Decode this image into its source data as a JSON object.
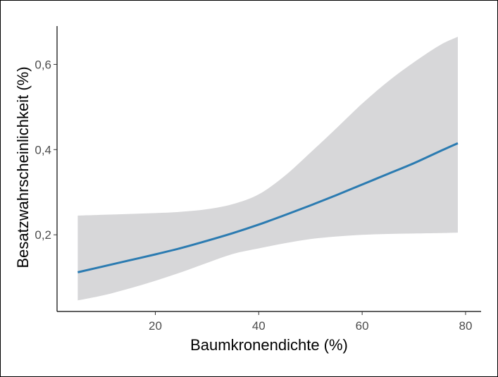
{
  "chart_data": {
    "type": "line",
    "title": "",
    "xlabel": "Baumkronendichte (%)",
    "ylabel": "Besatzwahrscheinlichkeit (%)",
    "xlim": [
      1,
      83
    ],
    "ylim": [
      0.02,
      0.69
    ],
    "x_ticks": [
      {
        "value": 20,
        "label": "20"
      },
      {
        "value": 40,
        "label": "40"
      },
      {
        "value": 60,
        "label": "60"
      },
      {
        "value": 80,
        "label": "80"
      }
    ],
    "y_ticks": [
      {
        "value": 0.2,
        "label": "0,2"
      },
      {
        "value": 0.4,
        "label": "0,4"
      },
      {
        "value": 0.6,
        "label": "0,6"
      }
    ],
    "grid": false,
    "legend": "none",
    "colors": {
      "line": "#2b7bb1",
      "band": "#d7d7d9",
      "axis": "#000000"
    },
    "series": [
      {
        "x": [
          5,
          10,
          15,
          20,
          25,
          30,
          35,
          40,
          45,
          50,
          55,
          60,
          65,
          70,
          75,
          78.5
        ],
        "y": [
          0.112,
          0.126,
          0.14,
          0.154,
          0.169,
          0.186,
          0.204,
          0.224,
          0.246,
          0.269,
          0.293,
          0.318,
          0.343,
          0.368,
          0.396,
          0.415
        ],
        "lower": [
          0.046,
          0.058,
          0.074,
          0.092,
          0.112,
          0.134,
          0.155,
          0.168,
          0.18,
          0.19,
          0.196,
          0.2,
          0.202,
          0.203,
          0.204,
          0.205
        ],
        "upper": [
          0.245,
          0.247,
          0.249,
          0.251,
          0.254,
          0.26,
          0.272,
          0.295,
          0.338,
          0.393,
          0.45,
          0.508,
          0.56,
          0.605,
          0.645,
          0.665
        ]
      }
    ]
  }
}
